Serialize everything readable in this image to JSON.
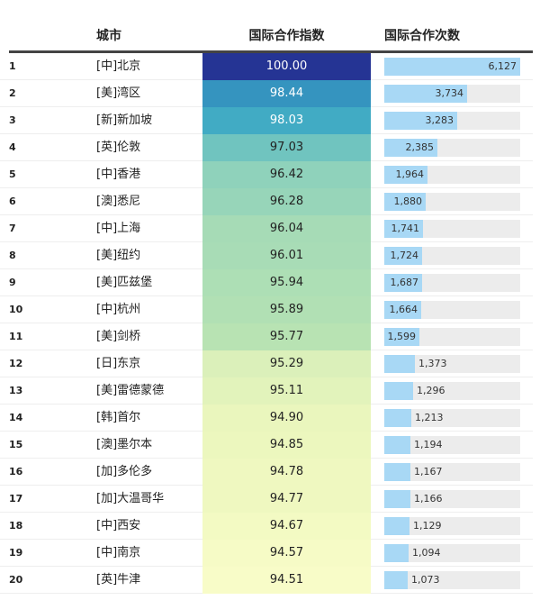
{
  "chart_data": {
    "type": "table",
    "columns": [
      "",
      "城市",
      "国际合作指数",
      "国际合作次数"
    ],
    "max_count": 6127,
    "rows": [
      {
        "rank": "1",
        "city": "[中]北京",
        "index": "100.00",
        "count": 6127,
        "count_label": "6,127",
        "color": "#253494",
        "text": "#fff"
      },
      {
        "rank": "2",
        "city": "[美]湾区",
        "index": "98.44",
        "count": 3734,
        "count_label": "3,734",
        "color": "#3594bf",
        "text": "#fff"
      },
      {
        "rank": "3",
        "city": "[新]新加坡",
        "index": "98.03",
        "count": 3283,
        "count_label": "3,283",
        "color": "#41abc4",
        "text": "#fff"
      },
      {
        "rank": "4",
        "city": "[英]伦敦",
        "index": "97.03",
        "count": 2385,
        "count_label": "2,385",
        "color": "#70c4bf",
        "text": "#222"
      },
      {
        "rank": "5",
        "city": "[中]香港",
        "index": "96.42",
        "count": 1964,
        "count_label": "1,964",
        "color": "#8fd2bb",
        "text": "#222"
      },
      {
        "rank": "6",
        "city": "[澳]悉尼",
        "index": "96.28",
        "count": 1880,
        "count_label": "1,880",
        "color": "#97d5b9",
        "text": "#222"
      },
      {
        "rank": "7",
        "city": "[中]上海",
        "index": "96.04",
        "count": 1741,
        "count_label": "1,741",
        "color": "#a6dbb6",
        "text": "#222"
      },
      {
        "rank": "8",
        "city": "[美]纽约",
        "index": "96.01",
        "count": 1724,
        "count_label": "1,724",
        "color": "#a8dcb6",
        "text": "#222"
      },
      {
        "rank": "9",
        "city": "[美]匹兹堡",
        "index": "95.94",
        "count": 1687,
        "count_label": "1,687",
        "color": "#addfb5",
        "text": "#222"
      },
      {
        "rank": "10",
        "city": "[中]杭州",
        "index": "95.89",
        "count": 1664,
        "count_label": "1,664",
        "color": "#b1e0b4",
        "text": "#222"
      },
      {
        "rank": "11",
        "city": "[美]剑桥",
        "index": "95.77",
        "count": 1599,
        "count_label": "1,599",
        "color": "#b8e3b3",
        "text": "#222"
      },
      {
        "rank": "12",
        "city": "[日]东京",
        "index": "95.29",
        "count": 1373,
        "count_label": "1,373",
        "color": "#dbf0ba",
        "text": "#222"
      },
      {
        "rank": "13",
        "city": "[美]雷德蒙德",
        "index": "95.11",
        "count": 1296,
        "count_label": "1,296",
        "color": "#e2f3bb",
        "text": "#222"
      },
      {
        "rank": "14",
        "city": "[韩]首尔",
        "index": "94.90",
        "count": 1213,
        "count_label": "1,213",
        "color": "#eaf6bd",
        "text": "#222"
      },
      {
        "rank": "15",
        "city": "[澳]墨尔本",
        "index": "94.85",
        "count": 1194,
        "count_label": "1,194",
        "color": "#ecf7be",
        "text": "#222"
      },
      {
        "rank": "16",
        "city": "[加]多伦多",
        "index": "94.78",
        "count": 1167,
        "count_label": "1,167",
        "color": "#eff8c0",
        "text": "#222"
      },
      {
        "rank": "17",
        "city": "[加]大温哥华",
        "index": "94.77",
        "count": 1166,
        "count_label": "1,166",
        "color": "#eff8c0",
        "text": "#222"
      },
      {
        "rank": "18",
        "city": "[中]西安",
        "index": "94.67",
        "count": 1129,
        "count_label": "1,129",
        "color": "#f3fac3",
        "text": "#222"
      },
      {
        "rank": "19",
        "city": "[中]南京",
        "index": "94.57",
        "count": 1094,
        "count_label": "1,094",
        "color": "#f6fbc6",
        "text": "#222"
      },
      {
        "rank": "20",
        "city": "[英]牛津",
        "index": "94.51",
        "count": 1073,
        "count_label": "1,073",
        "color": "#f8fcc8",
        "text": "#222"
      }
    ]
  }
}
